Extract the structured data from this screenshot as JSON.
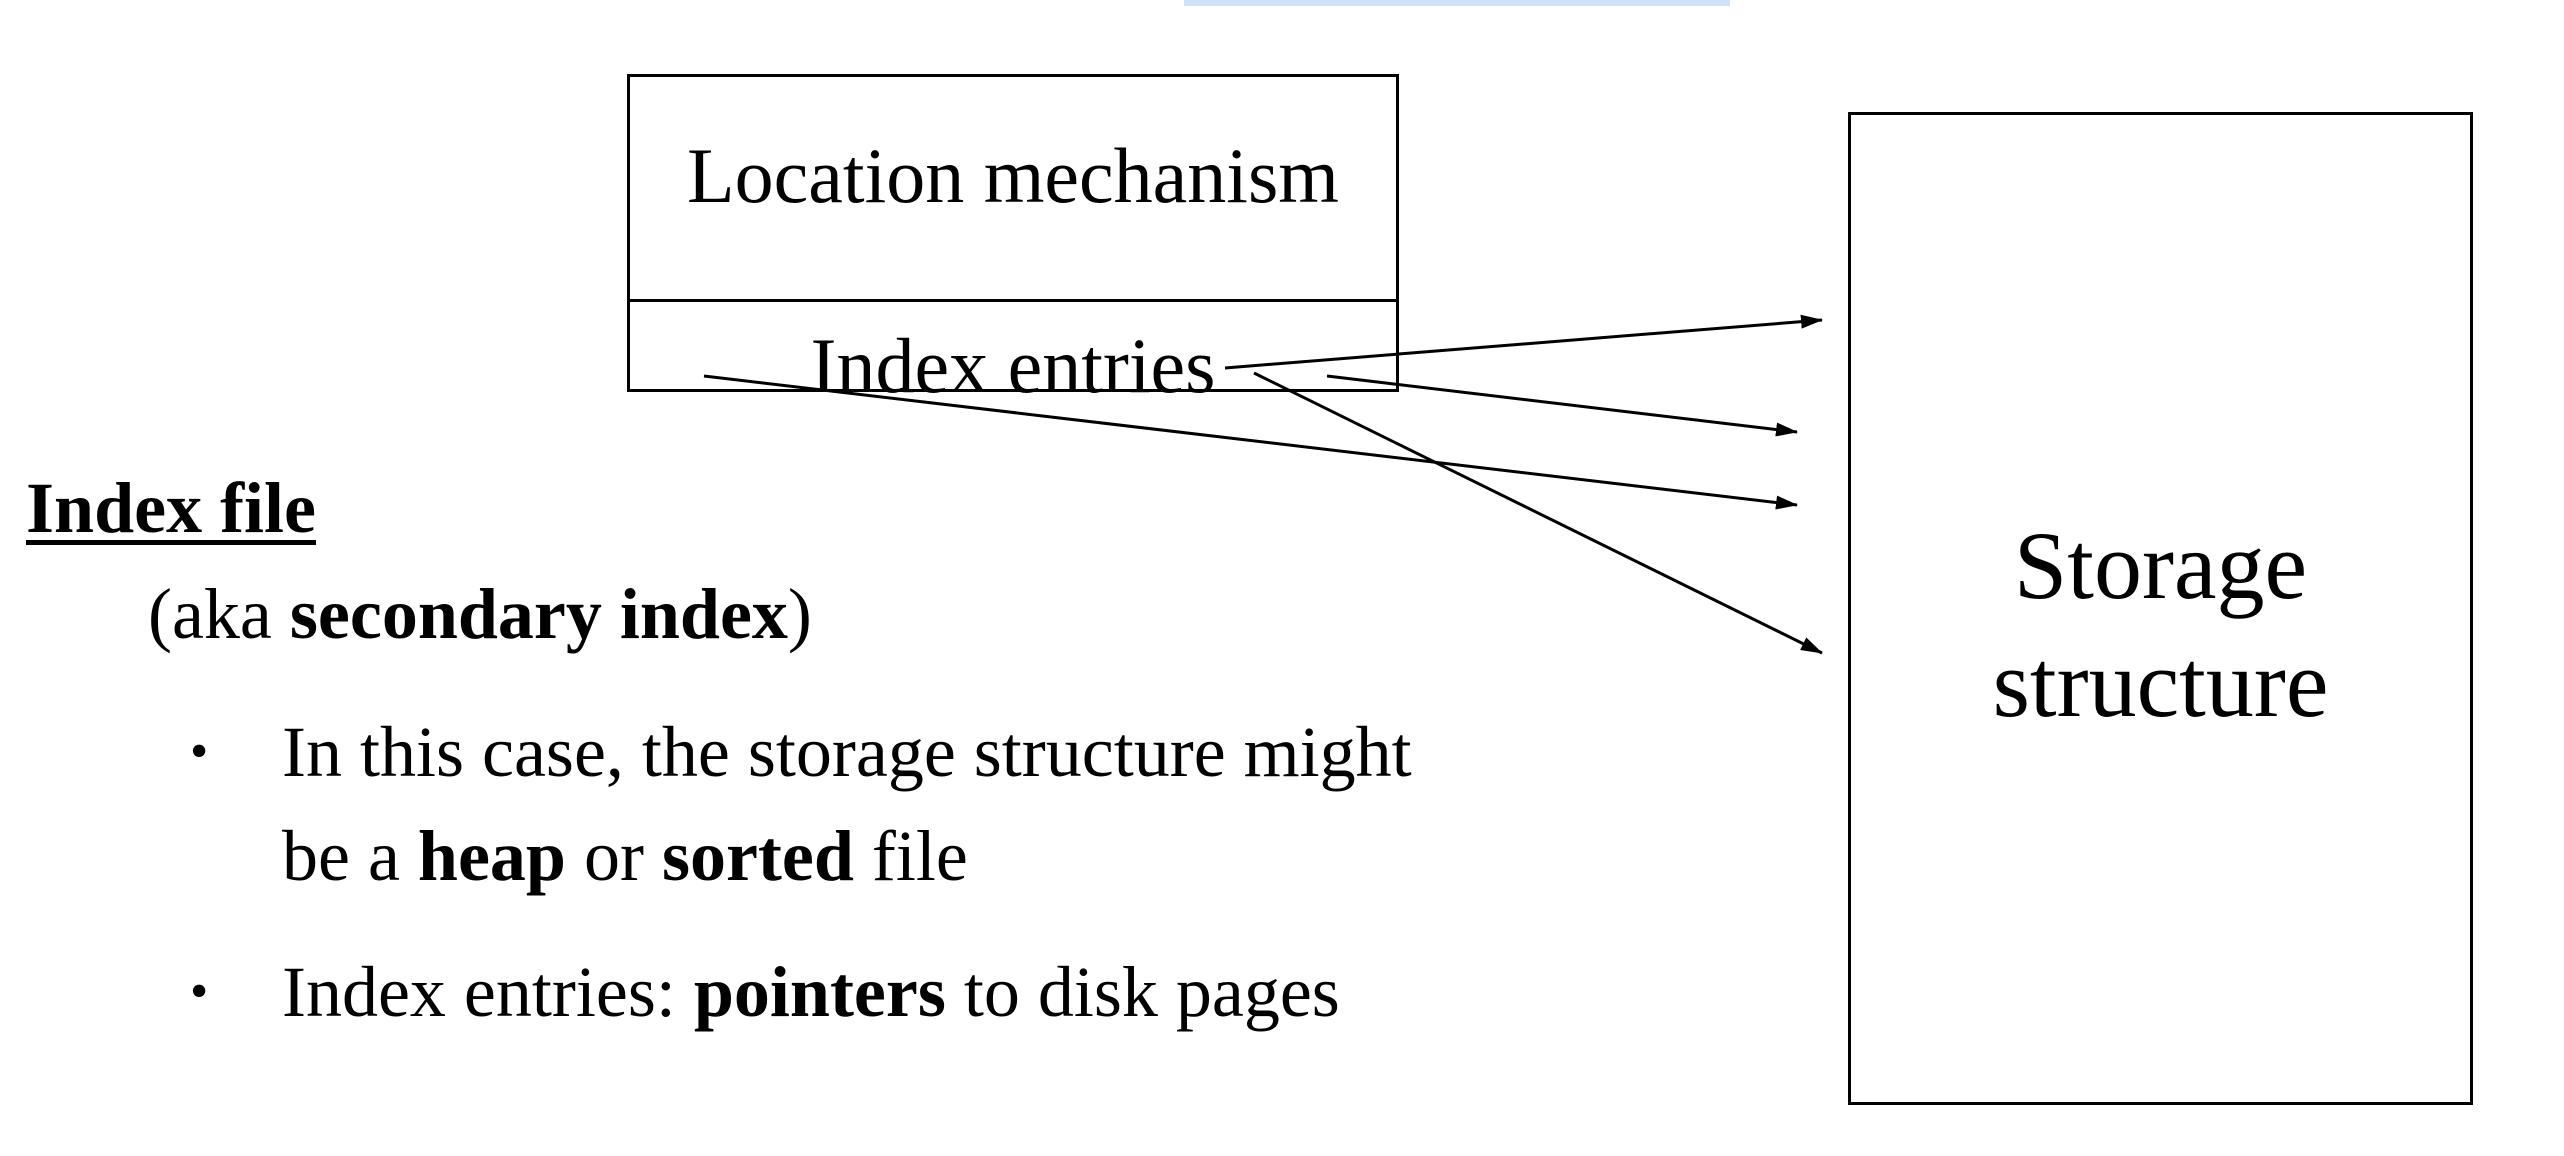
{
  "diagram": {
    "location_box": {
      "label": "Location mechanism",
      "entries_label": "Index entries"
    },
    "storage_box": {
      "line1": "Storage",
      "line2": "structure"
    },
    "arrow_count": 4
  },
  "text": {
    "heading": "Index file",
    "aka_prefix": "(aka ",
    "aka_bold": "secondary index",
    "aka_suffix": ")",
    "bullets": [
      {
        "marker": "•",
        "line1": "In this case, the storage structure might",
        "part_prefix": "be a ",
        "bold1": "heap",
        "mid": " or ",
        "bold2": "sorted",
        "suffix": " file"
      },
      {
        "marker": "•",
        "prefix": "Index entries: ",
        "bold": "pointers",
        "suffix": " to disk pages"
      }
    ]
  },
  "colors": {
    "ink": "#000000",
    "top_highlight": "#cfe2f8"
  }
}
